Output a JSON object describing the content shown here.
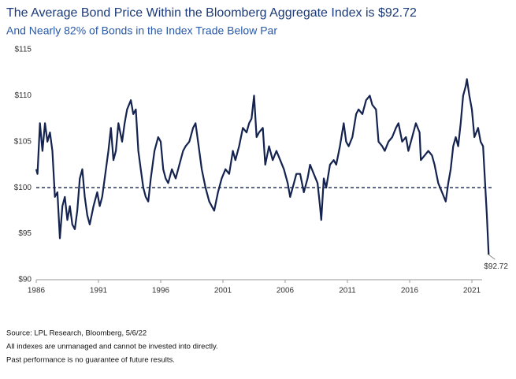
{
  "chart_data": {
    "type": "line",
    "title": "The Average Bond Price Within the Bloomberg Aggregate Index is $92.72",
    "subtitle": "And Nearly 82% of Bonds in the Index Trade Below Par",
    "annotation": "$92.72",
    "notes": [
      "Source: LPL Research, Bloomberg, 5/6/22",
      "All indexes are unmanaged and cannot be invested into directly.",
      "Past performance is no guarantee of future results."
    ],
    "reference_line": 100,
    "xlim": [
      1986,
      2022.7
    ],
    "xticks": [
      1986,
      1991,
      1996,
      2001,
      2006,
      2011,
      2016,
      2021
    ],
    "ylim": [
      90,
      115
    ],
    "yticks": [
      {
        "value": 90,
        "label": "$90"
      },
      {
        "value": 95,
        "label": "$95"
      },
      {
        "value": 100,
        "label": "$100"
      },
      {
        "value": 105,
        "label": "$105"
      },
      {
        "value": 110,
        "label": "$110"
      },
      {
        "value": 115,
        "label": "$115"
      }
    ],
    "series": [
      {
        "name": "Average Bond Price",
        "color": "#14234f",
        "x": [
          1986.0,
          1986.1,
          1986.3,
          1986.5,
          1986.7,
          1986.9,
          1987.1,
          1987.3,
          1987.5,
          1987.7,
          1987.9,
          1988.1,
          1988.3,
          1988.5,
          1988.7,
          1988.9,
          1989.1,
          1989.3,
          1989.5,
          1989.7,
          1989.9,
          1990.1,
          1990.3,
          1990.6,
          1990.9,
          1991.1,
          1991.3,
          1991.5,
          1991.8,
          1992.0,
          1992.2,
          1992.4,
          1992.6,
          1992.9,
          1993.1,
          1993.3,
          1993.6,
          1993.8,
          1994.0,
          1994.2,
          1994.4,
          1994.6,
          1994.8,
          1995.0,
          1995.2,
          1995.5,
          1995.8,
          1996.0,
          1996.2,
          1996.4,
          1996.6,
          1996.9,
          1997.2,
          1997.5,
          1997.8,
          1998.0,
          1998.3,
          1998.6,
          1998.8,
          1999.0,
          1999.3,
          1999.6,
          1999.9,
          2000.1,
          2000.3,
          2000.6,
          2000.9,
          2001.2,
          2001.5,
          2001.8,
          2002.0,
          2002.3,
          2002.6,
          2002.9,
          2003.1,
          2003.3,
          2003.5,
          2003.7,
          2003.9,
          2004.2,
          2004.4,
          2004.7,
          2005.0,
          2005.3,
          2005.6,
          2005.9,
          2006.2,
          2006.4,
          2006.7,
          2006.9,
          2007.2,
          2007.5,
          2007.8,
          2008.0,
          2008.3,
          2008.6,
          2008.8,
          2008.9,
          2009.1,
          2009.3,
          2009.6,
          2009.9,
          2010.1,
          2010.4,
          2010.7,
          2010.9,
          2011.1,
          2011.4,
          2011.7,
          2011.9,
          2012.2,
          2012.5,
          2012.8,
          2013.0,
          2013.3,
          2013.5,
          2013.8,
          2014.0,
          2014.3,
          2014.6,
          2014.9,
          2015.1,
          2015.4,
          2015.7,
          2015.9,
          2016.2,
          2016.5,
          2016.8,
          2016.9,
          2017.2,
          2017.5,
          2017.8,
          2018.0,
          2018.3,
          2018.6,
          2018.9,
          2019.1,
          2019.3,
          2019.5,
          2019.7,
          2019.9,
          2020.1,
          2020.3,
          2020.5,
          2020.6,
          2020.8,
          2021.0,
          2021.2,
          2021.5,
          2021.7,
          2021.9,
          2022.0,
          2022.2,
          2022.35
        ],
        "values": [
          102,
          101.5,
          107,
          104,
          107,
          105,
          106,
          104,
          99,
          99.5,
          94.5,
          98,
          99,
          96.5,
          98,
          96,
          95.5,
          97.5,
          101,
          102,
          99,
          97,
          96,
          98,
          99.5,
          98,
          99,
          101,
          104,
          106.5,
          103,
          104,
          107,
          105,
          107,
          108.5,
          109.5,
          108,
          108.5,
          104,
          102,
          100,
          99,
          98.5,
          101,
          104,
          105.5,
          105,
          102,
          101,
          100.5,
          102,
          101,
          102.5,
          104,
          104.5,
          105,
          106.5,
          107,
          105,
          102,
          100,
          98.5,
          98,
          97.5,
          99.5,
          101,
          102,
          101.5,
          104,
          103,
          104.5,
          106.5,
          106,
          107,
          107.5,
          110,
          105.5,
          106,
          106.5,
          102.5,
          104.5,
          103,
          104,
          103,
          102,
          100.5,
          99,
          100.5,
          101.5,
          101.5,
          99.5,
          101,
          102.5,
          101.5,
          100.5,
          98,
          96.5,
          101,
          100,
          102.5,
          103,
          102.5,
          104.5,
          107,
          105,
          104.5,
          105.5,
          108,
          108.5,
          108,
          109.5,
          110,
          109,
          108.5,
          105,
          104.5,
          104,
          105,
          105.5,
          106.5,
          107,
          105,
          105.5,
          104,
          105.5,
          107,
          106,
          103,
          103.5,
          104,
          103.5,
          102.5,
          100.5,
          99.5,
          98.5,
          100.5,
          102,
          104.5,
          105.5,
          104.5,
          107,
          110,
          111,
          111.8,
          110,
          108.5,
          105.5,
          106.5,
          105,
          104.5,
          102,
          97,
          92.72
        ]
      }
    ]
  }
}
